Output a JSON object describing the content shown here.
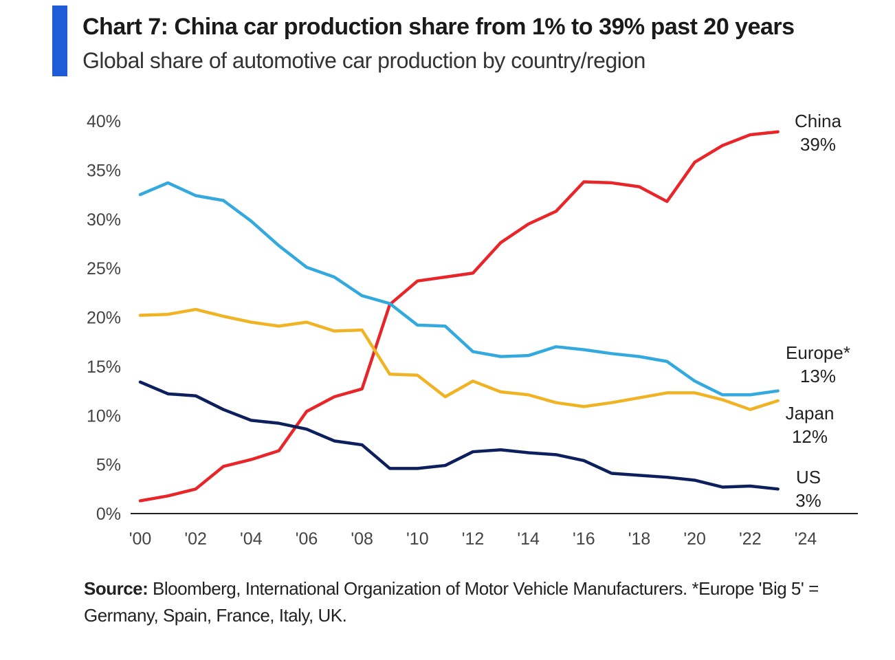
{
  "header": {
    "title": "Chart 7: China car production share from 1% to 39% past 20 years",
    "subtitle": "Global share of automotive car production by country/region"
  },
  "footer": {
    "source_label": "Source:",
    "source_text": " Bloomberg, International Organization of Motor Vehicle Manufacturers. *Europe 'Big 5' = Germany, Spain, France, Italy, UK."
  },
  "chart_data": {
    "type": "line",
    "title": "Chart 7: China car production share from 1% to 39% past 20 years",
    "subtitle": "Global share of automotive car production by country/region",
    "x": [
      2000,
      2001,
      2002,
      2003,
      2004,
      2005,
      2006,
      2007,
      2008,
      2009,
      2010,
      2011,
      2012,
      2013,
      2014,
      2015,
      2016,
      2017,
      2018,
      2019,
      2020,
      2021,
      2022,
      2023
    ],
    "xlim": [
      2000,
      2024
    ],
    "x_ticks": [
      "'00",
      "'02",
      "'04",
      "'06",
      "'08",
      "'10",
      "'12",
      "'14",
      "'16",
      "'18",
      "'20",
      "'22",
      "'24"
    ],
    "ylim": [
      0,
      40
    ],
    "y_ticks": [
      "0%",
      "5%",
      "10%",
      "15%",
      "20%",
      "25%",
      "30%",
      "35%",
      "40%"
    ],
    "grid": false,
    "legend": "end-of-line labels",
    "series": [
      {
        "name": "China",
        "end_label": "39%",
        "color": "#e8262a",
        "values": [
          1.3,
          1.8,
          2.5,
          4.8,
          5.5,
          6.4,
          10.4,
          11.9,
          12.7,
          21.3,
          23.7,
          24.1,
          24.5,
          27.6,
          29.5,
          30.8,
          33.8,
          33.7,
          33.3,
          31.8,
          35.8,
          37.5,
          38.6,
          38.9
        ]
      },
      {
        "name": "Europe*",
        "end_label": "13%",
        "color": "#34a9dd",
        "values": [
          32.5,
          33.7,
          32.4,
          31.9,
          29.8,
          27.3,
          25.1,
          24.1,
          22.2,
          21.4,
          19.2,
          19.1,
          16.5,
          16.0,
          16.1,
          17.0,
          16.7,
          16.3,
          16.0,
          15.5,
          13.5,
          12.1,
          12.1,
          12.5
        ]
      },
      {
        "name": "Japan",
        "end_label": "12%",
        "color": "#f0b323",
        "values": [
          20.2,
          20.3,
          20.8,
          20.1,
          19.5,
          19.1,
          19.5,
          18.6,
          18.7,
          14.2,
          14.1,
          11.9,
          13.5,
          12.4,
          12.1,
          11.3,
          10.9,
          11.3,
          11.8,
          12.3,
          12.3,
          11.6,
          10.6,
          11.5
        ]
      },
      {
        "name": "US",
        "end_label": "3%",
        "color": "#0d1f5c",
        "values": [
          13.4,
          12.2,
          12.0,
          10.6,
          9.5,
          9.2,
          8.6,
          7.4,
          7.0,
          4.6,
          4.6,
          4.9,
          6.3,
          6.5,
          6.2,
          6.0,
          5.4,
          4.1,
          3.9,
          3.7,
          3.4,
          2.7,
          2.8,
          2.5
        ]
      }
    ]
  }
}
